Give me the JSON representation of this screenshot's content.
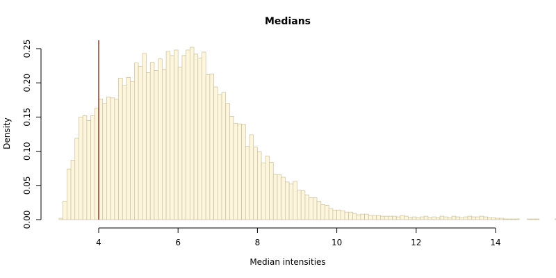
{
  "chart_data": {
    "type": "bar",
    "title": "Medians",
    "xlabel": "Median intensities",
    "ylabel": "Density",
    "xlim": [
      3.0,
      14.5
    ],
    "ylim": [
      0,
      0.25
    ],
    "x_ticks": [
      "4",
      "6",
      "8",
      "10",
      "12",
      "14"
    ],
    "y_ticks": [
      "0.00",
      "0.05",
      "0.10",
      "0.15",
      "0.20",
      "0.25"
    ],
    "bin_start": 3.0,
    "bin_width": 0.1,
    "values": [
      0.002,
      0.027,
      0.074,
      0.087,
      0.119,
      0.15,
      0.152,
      0.145,
      0.152,
      0.163,
      0.176,
      0.17,
      0.179,
      0.178,
      0.176,
      0.207,
      0.196,
      0.208,
      0.202,
      0.229,
      0.224,
      0.243,
      0.215,
      0.23,
      0.218,
      0.235,
      0.22,
      0.246,
      0.24,
      0.248,
      0.223,
      0.24,
      0.248,
      0.252,
      0.242,
      0.236,
      0.245,
      0.212,
      0.213,
      0.194,
      0.183,
      0.186,
      0.17,
      0.151,
      0.141,
      0.14,
      0.139,
      0.107,
      0.124,
      0.106,
      0.099,
      0.083,
      0.093,
      0.084,
      0.066,
      0.066,
      0.062,
      0.055,
      0.052,
      0.056,
      0.043,
      0.042,
      0.036,
      0.032,
      0.032,
      0.027,
      0.022,
      0.021,
      0.016,
      0.014,
      0.014,
      0.013,
      0.011,
      0.011,
      0.009,
      0.007,
      0.008,
      0.008,
      0.006,
      0.006,
      0.006,
      0.005,
      0.005,
      0.005,
      0.005,
      0.004,
      0.006,
      0.005,
      0.003,
      0.004,
      0.003,
      0.004,
      0.005,
      0.003,
      0.004,
      0.003,
      0.005,
      0.004,
      0.003,
      0.005,
      0.004,
      0.003,
      0.004,
      0.005,
      0.004,
      0.004,
      0.005,
      0.004,
      0.003,
      0.003,
      0.002,
      0.002,
      0.001,
      0.001,
      0.001,
      0.001,
      0.0,
      0.0,
      0.001,
      0.001,
      0.001,
      0.0,
      0.0,
      0.0,
      0.0,
      0.001,
      0.001,
      0.001,
      0.001,
      0.001,
      0.0,
      0.0,
      0.0,
      0.001,
      0.001,
      0.001,
      0.0,
      0.0,
      0.0,
      0.0,
      0.0,
      0.001,
      0.0,
      0.0,
      0.0
    ],
    "reference_line_x": 4.0,
    "reference_line_color": "#8b3a2a",
    "bar_fill": "#fdf5dc",
    "bar_stroke": "#c8bea0",
    "grid": false,
    "legend": "none"
  }
}
